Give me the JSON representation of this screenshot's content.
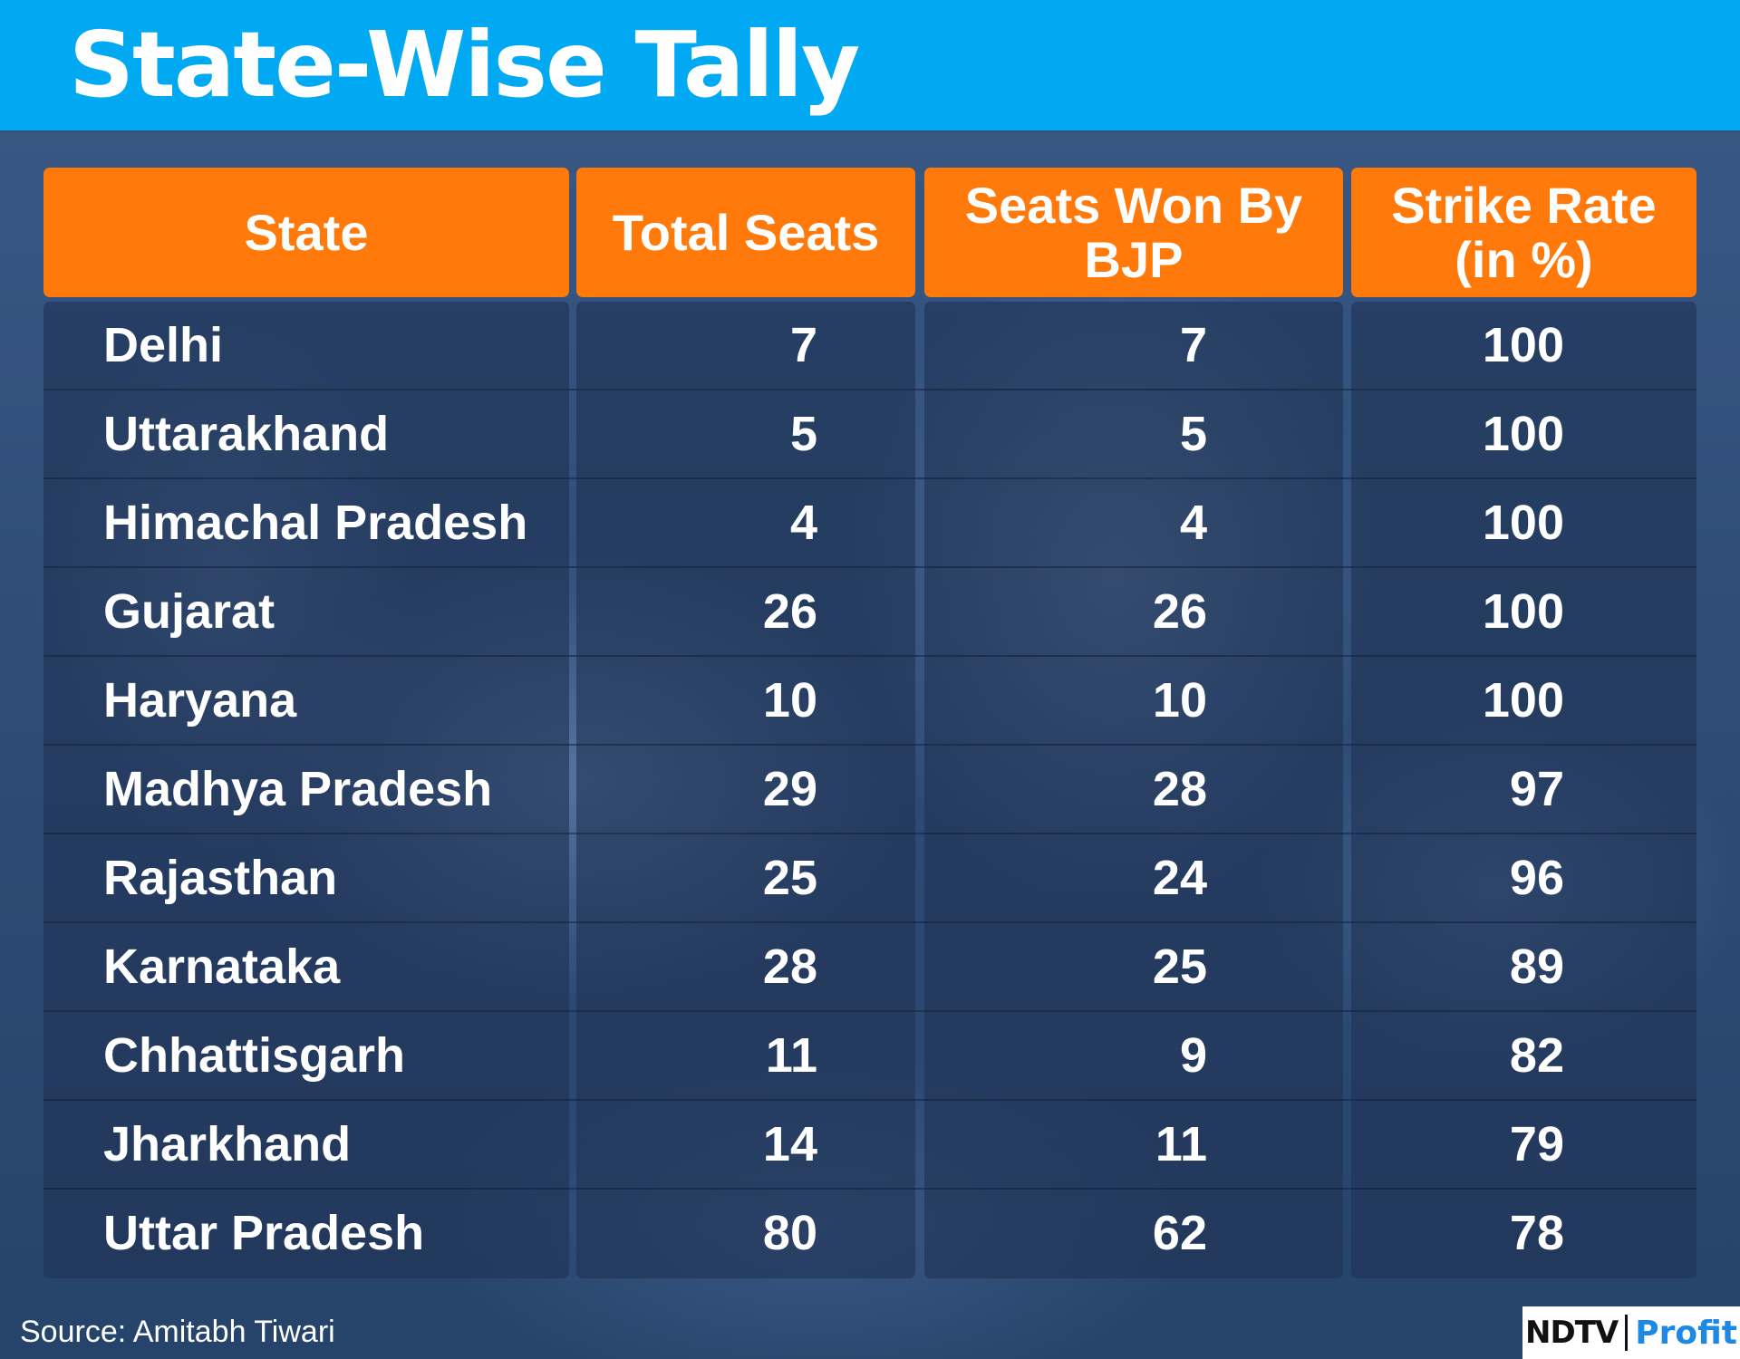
{
  "title": "State-Wise Tally",
  "source": "Source: Amitabh Tiwari",
  "logo": {
    "brand": "NDTV",
    "product": "Profit",
    "product_color": "#1e88e5"
  },
  "colors": {
    "header_bar": "#00a9f2",
    "table_header": "#ff7a0b",
    "text": "#ffffff"
  },
  "chart_data": {
    "type": "table",
    "columns": [
      "State",
      "Total Seats",
      "Seats Won By BJP",
      "Strike Rate (in %)"
    ],
    "rows": [
      [
        "Delhi",
        7,
        7,
        100
      ],
      [
        "Uttarakhand",
        5,
        5,
        100
      ],
      [
        "Himachal Pradesh",
        4,
        4,
        100
      ],
      [
        "Gujarat",
        26,
        26,
        100
      ],
      [
        "Haryana",
        10,
        10,
        100
      ],
      [
        "Madhya Pradesh",
        29,
        28,
        97
      ],
      [
        "Rajasthan",
        25,
        24,
        96
      ],
      [
        "Karnataka",
        28,
        25,
        89
      ],
      [
        "Chhattisgarh",
        11,
        9,
        82
      ],
      [
        "Jharkhand",
        14,
        11,
        79
      ],
      [
        "Uttar Pradesh",
        80,
        62,
        78
      ]
    ]
  }
}
